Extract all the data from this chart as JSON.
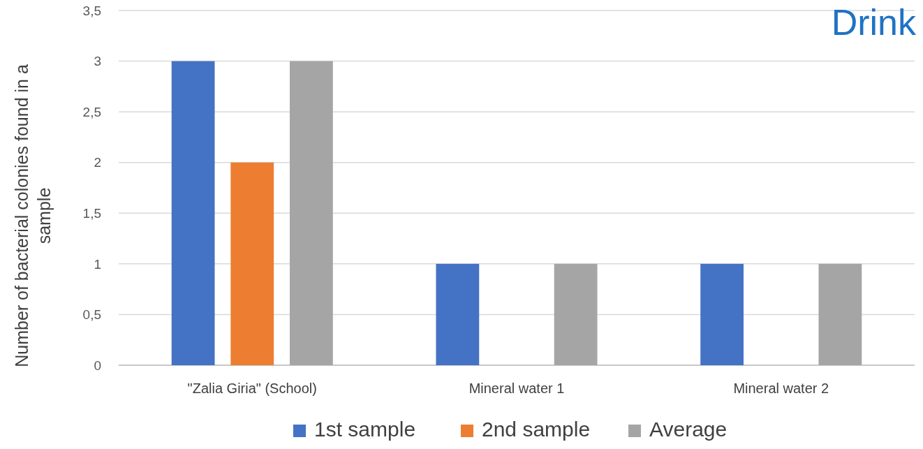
{
  "chart_data": {
    "type": "bar",
    "annotations": [
      "Drink"
    ],
    "ylabel": "Number of bacterial colonies found in a sample",
    "categories": [
      "\"Zalia Giria\" (School)",
      "Mineral water 1",
      "Mineral water 2"
    ],
    "series": [
      {
        "name": "1st sample",
        "color": "#4472c4",
        "values": [
          3,
          1,
          1
        ]
      },
      {
        "name": "2nd sample",
        "color": "#ed7d31",
        "values": [
          2,
          0,
          0
        ]
      },
      {
        "name": "Average",
        "color": "#a5a5a5",
        "values": [
          3,
          1,
          1
        ]
      }
    ],
    "ylim": [
      0,
      3.5
    ],
    "yticks": [
      0,
      {
        "value": 0.5,
        "label": "0,5"
      },
      1,
      {
        "value": 1.5,
        "label": "1,5"
      },
      2,
      {
        "value": 2.5,
        "label": "2,5"
      },
      3,
      {
        "value": 3.5,
        "label": "3,5"
      }
    ],
    "grid": "y",
    "legend": "bottom"
  }
}
